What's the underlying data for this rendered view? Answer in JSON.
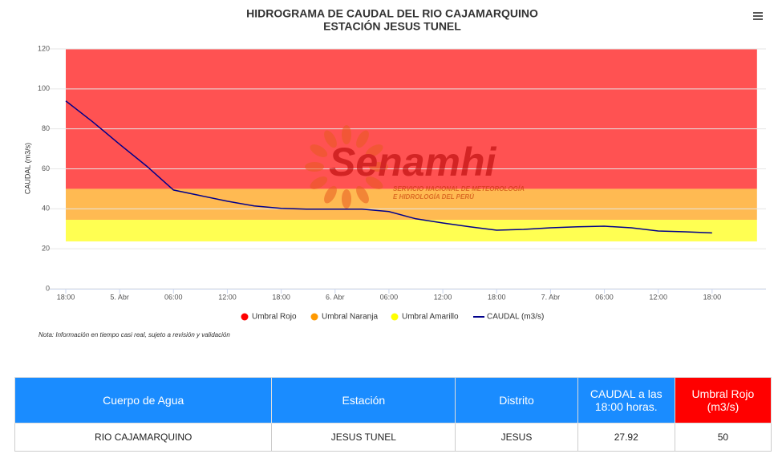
{
  "chart_data": {
    "type": "line",
    "title": "HIDROGRAMA DE CAUDAL DEL RIO CAJAMARQUINO",
    "subtitle": "ESTACIÓN JESUS TUNEL",
    "y_label": "CAUDAL (m3/s)",
    "note": "Nota: Información en tiempo casi real, sujeto a revisión y validación",
    "watermark": {
      "name": "Senamhi",
      "line1": "SERVICIO NACIONAL DE METEOROLOGÍA",
      "line2": "E HIDROLOGÍA DEL PERÚ"
    },
    "xlim": [
      0,
      78
    ],
    "ylim": [
      0,
      120
    ],
    "yticks": [
      0,
      20,
      40,
      60,
      80,
      100,
      120
    ],
    "xticks": [
      {
        "value": 0,
        "label": "18:00"
      },
      {
        "value": 6,
        "label": "5. Abr"
      },
      {
        "value": 12,
        "label": "06:00"
      },
      {
        "value": 18,
        "label": "12:00"
      },
      {
        "value": 24,
        "label": "18:00"
      },
      {
        "value": 30,
        "label": "6. Abr"
      },
      {
        "value": 36,
        "label": "06:00"
      },
      {
        "value": 42,
        "label": "12:00"
      },
      {
        "value": 48,
        "label": "18:00"
      },
      {
        "value": 54,
        "label": "7. Abr"
      },
      {
        "value": 60,
        "label": "06:00"
      },
      {
        "value": 66,
        "label": "12:00"
      },
      {
        "value": 72,
        "label": "18:00"
      }
    ],
    "grid": true,
    "legend": "bottom",
    "series": [
      {
        "name": "Umbral Rojo",
        "color": "#ff0000",
        "x": [
          0,
          77
        ],
        "low": 50,
        "high": 120
      },
      {
        "name": "Umbral Naranja",
        "color": "#ff9900",
        "x": [
          0,
          77
        ],
        "low": 34.5,
        "high": 50
      },
      {
        "name": "Umbral Amarillo",
        "color": "#ffff00",
        "x": [
          0,
          77
        ],
        "low": 23.7,
        "high": 34.5
      },
      {
        "name": "CAUDAL (m3/s)",
        "color": "#00008b",
        "x": [
          0,
          3,
          6,
          9,
          12,
          15,
          18,
          21,
          24,
          27,
          30,
          33,
          36,
          39,
          42,
          45,
          48,
          51,
          54,
          57,
          60,
          63,
          66,
          69,
          72
        ],
        "values": [
          94,
          83.5,
          72.3,
          61.4,
          49.4,
          46.6,
          43.8,
          41.4,
          40.2,
          39.8,
          39.8,
          39.8,
          38.6,
          35,
          32.9,
          31,
          29.3,
          29.7,
          30.5,
          31,
          31.3,
          30.5,
          28.9,
          28.5,
          27.92
        ]
      }
    ]
  },
  "table": {
    "headers": [
      "Cuerpo de Agua",
      "Estación",
      "Distrito",
      "CAUDAL a las 18:00 horas.",
      "Umbral Rojo (m3/s)"
    ],
    "rows": [
      [
        "RIO CAJAMARQUINO",
        "JESUS TUNEL",
        "JESUS",
        "27.92",
        "50"
      ]
    ]
  }
}
